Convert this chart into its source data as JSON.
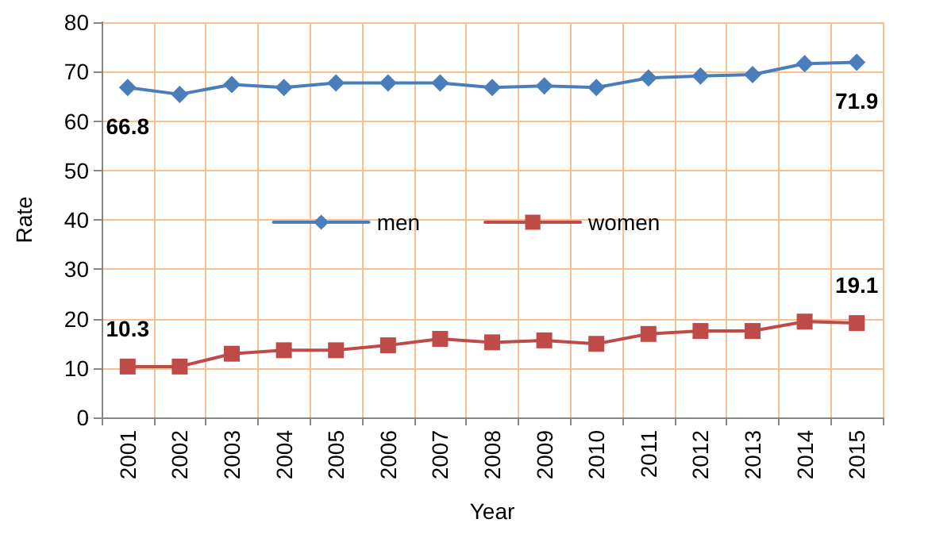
{
  "chart_data": {
    "type": "line",
    "xlabel": "Year",
    "ylabel": "Rate",
    "categories": [
      "2001",
      "2002",
      "2003",
      "2004",
      "2005",
      "2006",
      "2007",
      "2008",
      "2009",
      "2010",
      "2011",
      "2012",
      "2013",
      "2014",
      "2015"
    ],
    "series": [
      {
        "name": "men",
        "color": "#4a7ebb",
        "marker": "diamond",
        "values": [
          66.8,
          65.4,
          67.4,
          66.8,
          67.7,
          67.7,
          67.7,
          66.8,
          67.1,
          66.8,
          68.7,
          69.1,
          69.4,
          71.6,
          71.9
        ],
        "value_labels": [
          "66.8",
          null,
          null,
          null,
          null,
          null,
          null,
          null,
          null,
          null,
          null,
          null,
          null,
          null,
          "71.9"
        ]
      },
      {
        "name": "women",
        "color": "#be4b48",
        "marker": "square",
        "values": [
          10.3,
          10.3,
          12.9,
          13.6,
          13.6,
          14.6,
          15.9,
          15.2,
          15.6,
          14.9,
          16.9,
          17.5,
          17.5,
          19.4,
          19.1
        ],
        "value_labels": [
          "10.3",
          null,
          null,
          null,
          null,
          null,
          null,
          null,
          null,
          null,
          null,
          null,
          null,
          null,
          "19.1"
        ]
      }
    ],
    "ylim": [
      0,
      80
    ],
    "yticks": [
      0,
      10,
      20,
      30,
      40,
      50,
      60,
      70,
      80
    ],
    "grid": true,
    "legend": "center",
    "line_style": "solid"
  }
}
